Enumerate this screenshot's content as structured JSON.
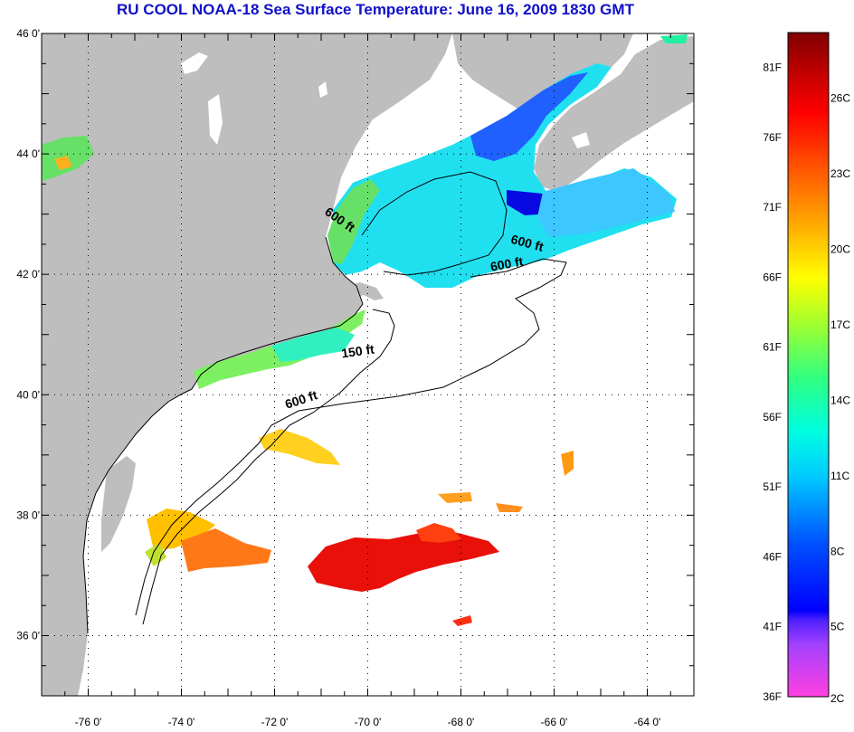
{
  "title": "RU COOL  NOAA-18  Sea Surface Temperature:  June 16, 2009 1830 GMT",
  "map": {
    "lon_range": [
      -77,
      -63
    ],
    "lat_range": [
      35,
      46
    ],
    "lat_ticks": [
      {
        "value": 46,
        "label": "46 0'"
      },
      {
        "value": 44,
        "label": "44 0'"
      },
      {
        "value": 42,
        "label": "42 0'"
      },
      {
        "value": 40,
        "label": "40 0'"
      },
      {
        "value": 38,
        "label": "38 0'"
      },
      {
        "value": 36,
        "label": "36 0'"
      }
    ],
    "lon_ticks": [
      {
        "value": -76,
        "label": "-76 0'"
      },
      {
        "value": -74,
        "label": "-74 0'"
      },
      {
        "value": -72,
        "label": "-72 0'"
      },
      {
        "value": -70,
        "label": "-70 0'"
      },
      {
        "value": -68,
        "label": "-68 0'"
      },
      {
        "value": -66,
        "label": "-66 0'"
      },
      {
        "value": -64,
        "label": "-64 0'"
      }
    ],
    "grid": "dotted",
    "land_color": "#bebebe",
    "ocean_color": "#ffffff",
    "contour_labels": [
      {
        "text": "600 ft",
        "lon": -70.65,
        "lat": 42.85
      },
      {
        "text": "600 ft",
        "lon": -66.6,
        "lat": 42.45
      },
      {
        "text": "600 ft",
        "lon": -67.0,
        "lat": 42.1
      },
      {
        "text": "150 ft",
        "lon": -70.2,
        "lat": 40.65
      },
      {
        "text": "600 ft",
        "lon": -71.4,
        "lat": 39.85
      }
    ]
  },
  "colorbar": {
    "f_labels": [
      {
        "value": 81,
        "label": "81F"
      },
      {
        "value": 76,
        "label": "76F"
      },
      {
        "value": 71,
        "label": "71F"
      },
      {
        "value": 66,
        "label": "66F"
      },
      {
        "value": 61,
        "label": "61F"
      },
      {
        "value": 56,
        "label": "56F"
      },
      {
        "value": 51,
        "label": "51F"
      },
      {
        "value": 46,
        "label": "46F"
      },
      {
        "value": 41,
        "label": "41F"
      },
      {
        "value": 36,
        "label": "36F"
      }
    ],
    "c_labels": [
      {
        "value": 26,
        "label": "26C"
      },
      {
        "value": 23,
        "label": "23C"
      },
      {
        "value": 20,
        "label": "20C"
      },
      {
        "value": 17,
        "label": "17C"
      },
      {
        "value": 14,
        "label": "14C"
      },
      {
        "value": 11,
        "label": "11C"
      },
      {
        "value": 8,
        "label": "8C"
      },
      {
        "value": 5,
        "label": "5C"
      },
      {
        "value": 2,
        "label": "2C"
      }
    ],
    "range_f": [
      36,
      83.5
    ]
  }
}
